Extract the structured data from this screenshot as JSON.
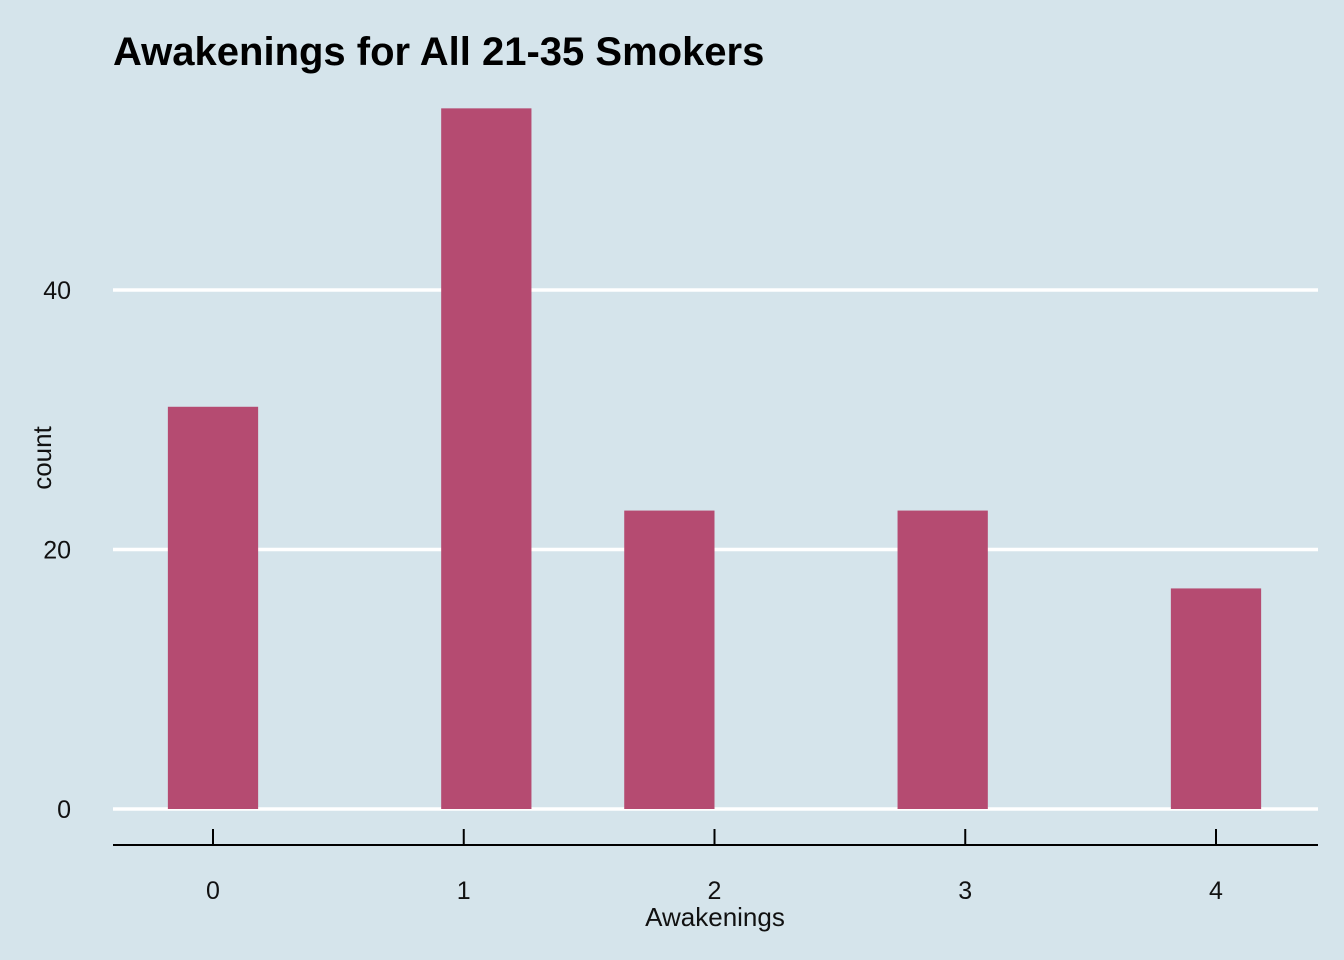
{
  "chart_data": {
    "type": "bar",
    "title": "Awakenings for All 21-35 Smokers",
    "xlabel": "Awakenings",
    "ylabel": "count",
    "x_ticks": [
      "0",
      "1",
      "2",
      "3",
      "4"
    ],
    "y_ticks": [
      "0",
      "20",
      "40"
    ],
    "xlim": [
      -0.4,
      4.4
    ],
    "ylim": [
      0,
      54
    ],
    "bars": [
      {
        "x": 0.0,
        "width": 0.36,
        "value": 31
      },
      {
        "x": 1.09,
        "width": 0.36,
        "value": 54
      },
      {
        "x": 1.82,
        "width": 0.36,
        "value": 23
      },
      {
        "x": 2.91,
        "width": 0.36,
        "value": 23
      },
      {
        "x": 4.0,
        "width": 0.36,
        "value": 17
      }
    ],
    "grid": "horizontal major lines only",
    "colors": {
      "background": "#d5e4eb",
      "bar_fill": "#b54b71",
      "grid": "#ffffff",
      "axis": "#000000"
    }
  }
}
